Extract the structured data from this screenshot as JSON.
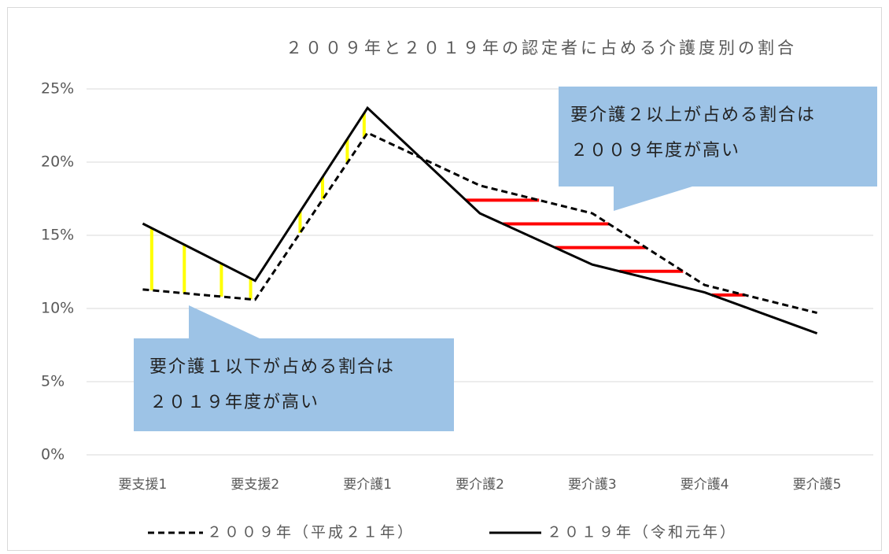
{
  "chart_data": {
    "type": "line",
    "title": "２００９年と２０１９年の認定者に占める介護度別の割合",
    "categories": [
      "要支援1",
      "要支援2",
      "要介護1",
      "要介護2",
      "要介護3",
      "要介護4",
      "要介護5"
    ],
    "series": [
      {
        "name": "２００９年（平成２１年）",
        "color": "#000000",
        "dash": true,
        "values": [
          11.3,
          10.6,
          22.0,
          18.4,
          16.5,
          11.6,
          9.7
        ]
      },
      {
        "name": "２０１９年（令和元年）",
        "color": "#000000",
        "dash": false,
        "values": [
          15.8,
          11.9,
          23.7,
          16.5,
          13.0,
          11.1,
          8.3
        ]
      }
    ],
    "ylim": [
      0,
      25
    ],
    "yticks": [
      {
        "value": 0,
        "label": "0%"
      },
      {
        "value": 5,
        "label": "5%"
      },
      {
        "value": 10,
        "label": "10%"
      },
      {
        "value": 15,
        "label": "15%"
      },
      {
        "value": 20,
        "label": "20%"
      },
      {
        "value": 25,
        "label": "25%"
      }
    ],
    "grid": true,
    "legend": "bottom",
    "annotations": [
      {
        "lines": [
          "要介護１以下が占める割合は",
          "２０１９年度が高い"
        ]
      },
      {
        "lines": [
          "要介護２以上が占める割合は",
          "２００９年度が高い"
        ]
      }
    ]
  }
}
